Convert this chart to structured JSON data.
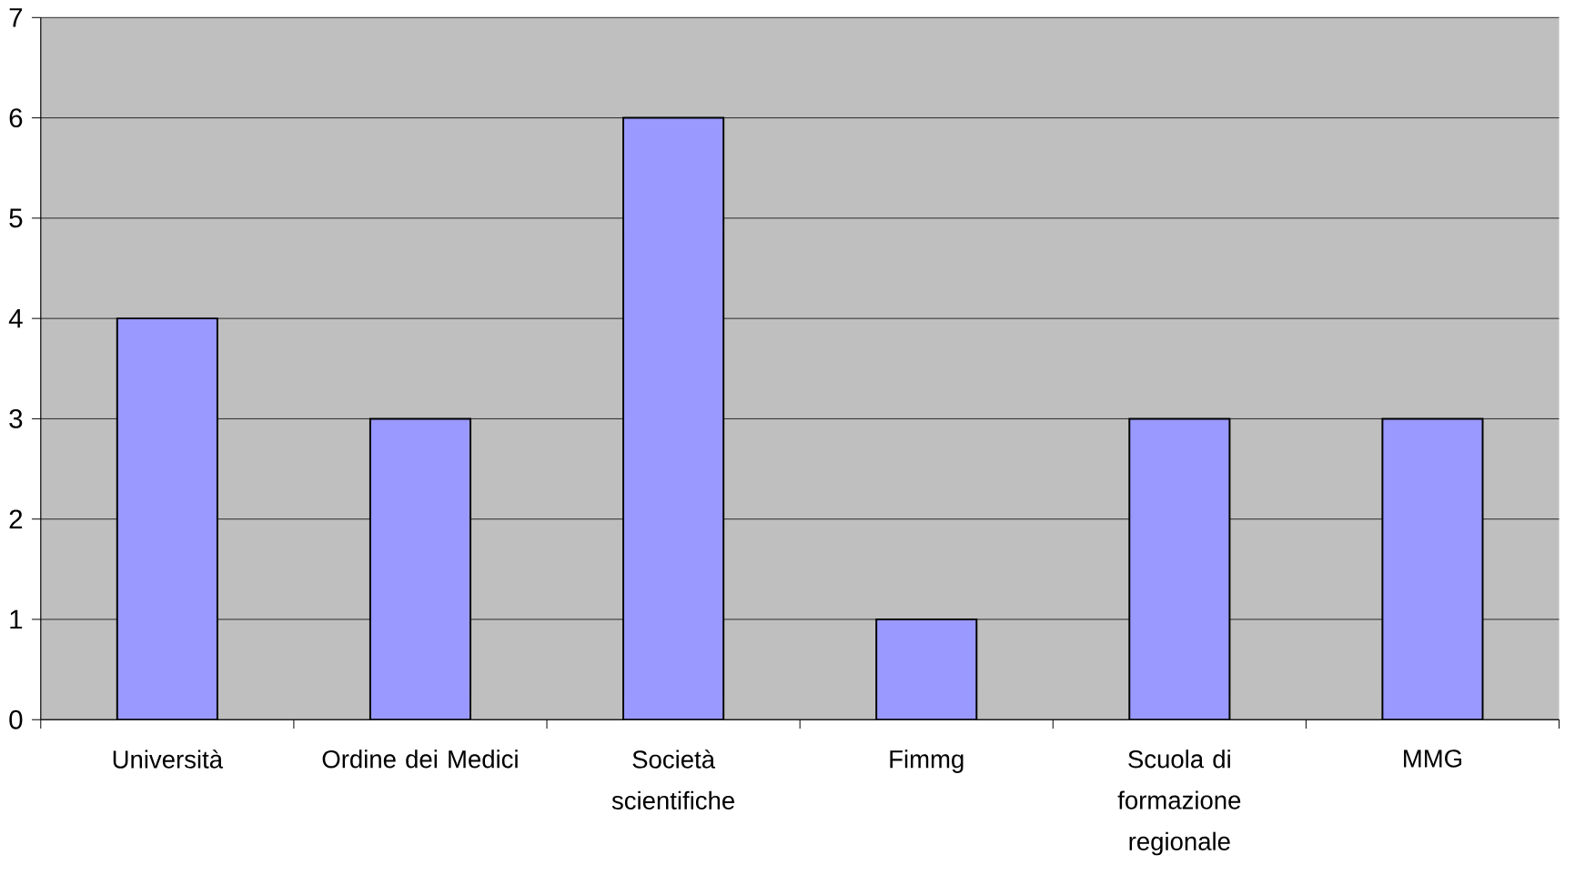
{
  "chart_data": {
    "type": "bar",
    "categories": [
      "Università",
      "Ordine dei Medici",
      "Società scientifiche",
      "Fimmg",
      "Scuola di formazione regionale",
      "MMG"
    ],
    "values": [
      4,
      3,
      6,
      1,
      3,
      3
    ],
    "color": "#9999ff",
    "ylim": [
      0,
      7
    ],
    "yticks": [
      0,
      1,
      2,
      3,
      4,
      5,
      6,
      7
    ],
    "grid": "y"
  }
}
